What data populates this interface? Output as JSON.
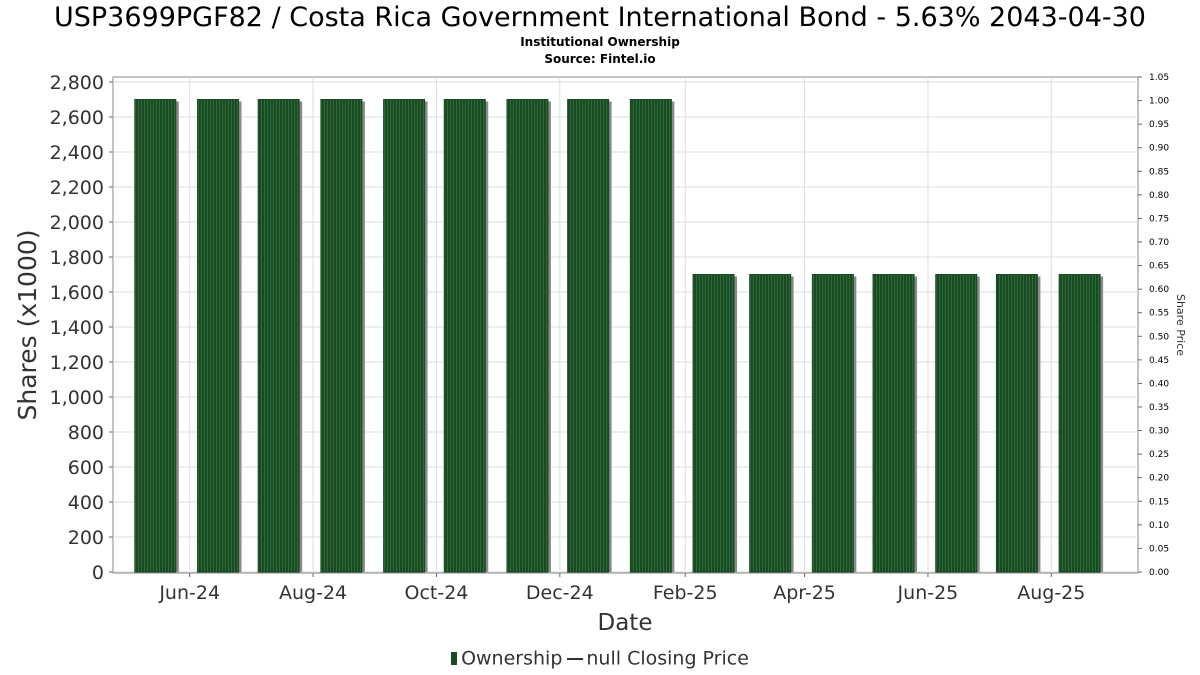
{
  "title": "USP3699PGF82 / Costa Rica Government International Bond - 5.63% 2043-04-30",
  "subtitle": "Institutional Ownership",
  "source": "Source: Fintel.io",
  "colors": {
    "bar": "#1a4a24",
    "bar_shadow": "#8a8a8a",
    "grid": "#dddddd",
    "frame": "#888888"
  },
  "chart_data": {
    "type": "bar",
    "categories": [
      "2024-05-15",
      "2024-06-15",
      "2024-07-15",
      "2024-08-15",
      "2024-09-15",
      "2024-10-15",
      "2024-11-15",
      "2024-12-15",
      "2025-01-15",
      "2025-02-15",
      "2025-03-15",
      "2025-04-15",
      "2025-05-15",
      "2025-06-15",
      "2025-07-15",
      "2025-08-15"
    ],
    "series": [
      {
        "name": "Ownership",
        "values": [
          2700,
          2700,
          2700,
          2700,
          2700,
          2700,
          2700,
          2700,
          2700,
          1700,
          1700,
          1700,
          1700,
          1700,
          1700,
          1700
        ]
      }
    ],
    "xlabel": "Date",
    "ylabel": "Shares (x1000)",
    "y2label": "Share Price",
    "ylim": [
      0,
      2800
    ],
    "y2lim": [
      0,
      1.05
    ],
    "yticks": [
      "0",
      "200",
      "400",
      "600",
      "800",
      "1,000",
      "1,200",
      "1,400",
      "1,600",
      "1,800",
      "2,000",
      "2,200",
      "2,400",
      "2,600",
      "2,800"
    ],
    "y2ticks": [
      "0.00",
      "0.05",
      "0.10",
      "0.15",
      "0.20",
      "0.25",
      "0.30",
      "0.35",
      "0.40",
      "0.45",
      "0.50",
      "0.55",
      "0.60",
      "0.65",
      "0.70",
      "0.75",
      "0.80",
      "0.85",
      "0.90",
      "0.95",
      "1.00",
      "1.05"
    ],
    "xticks": [
      "Jun-24",
      "Aug-24",
      "Oct-24",
      "Dec-24",
      "Feb-25",
      "Apr-25",
      "Jun-25",
      "Aug-25"
    ],
    "grid": true,
    "legend_position": "bottom"
  },
  "legend": {
    "ownership": "Ownership",
    "price": "null Closing Price"
  }
}
